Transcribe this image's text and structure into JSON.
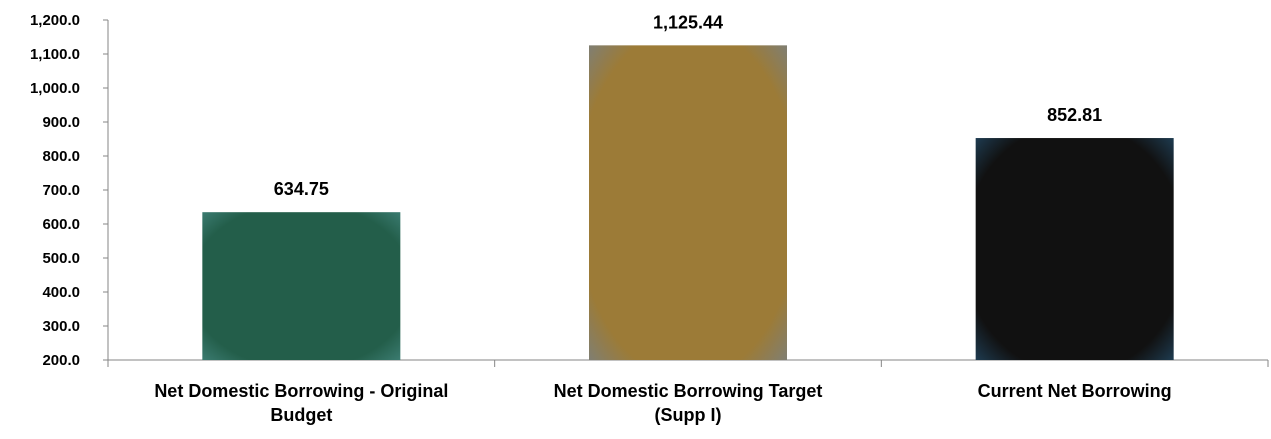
{
  "chart_data": {
    "type": "bar",
    "categories": [
      [
        "Net Domestic Borrowing - Original",
        "Budget"
      ],
      [
        "Net Domestic Borrowing Target",
        "(Supp I)"
      ],
      [
        "Current Net Borrowing"
      ]
    ],
    "values": [
      634.75,
      1125.44,
      852.81
    ],
    "data_labels": [
      "634.75",
      "1,125.44",
      "852.81"
    ],
    "bar_colors": [
      "#235e4a",
      "#9c7b37",
      "#111111"
    ],
    "bar_glow_colors": [
      "#3d7e74",
      "#7d7f78",
      "#1f3f56"
    ],
    "ylim": [
      200,
      1200
    ],
    "yticks": [
      200,
      300,
      400,
      500,
      600,
      700,
      800,
      900,
      1000,
      1100,
      1200
    ],
    "ytick_labels": [
      "200.0",
      "300.0",
      "400.0",
      "500.0",
      "600.0",
      "700.0",
      "800.0",
      "900.0",
      "1,000.0",
      "1,100.0",
      "1,200.0"
    ],
    "title": "",
    "xlabel": "",
    "ylabel": "",
    "grid": false,
    "legend": "none"
  }
}
